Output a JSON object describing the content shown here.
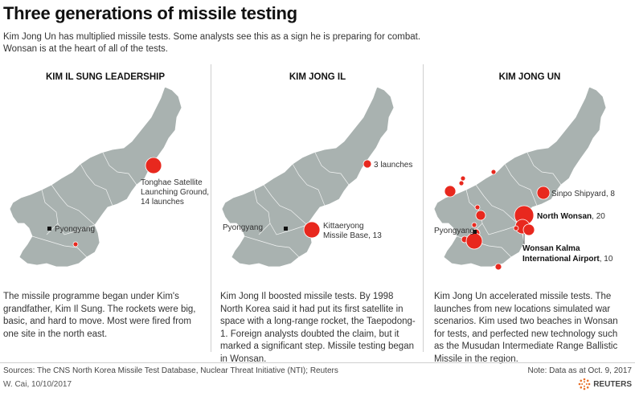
{
  "title": "Three generations of missile testing",
  "subtitle": "Kim Jong Un has multiplied missile tests. Some analysts see this as a sign he is preparing for combat. Wonsan is at the heart of all of the tests.",
  "colors": {
    "land": "#a9b2b0",
    "land_edge": "#ffffff",
    "marker": "#e8281e",
    "text": "#333333"
  },
  "panels": [
    {
      "title": "KIM IL SUNG LEADERSHIP",
      "labels": {
        "tonghae": [
          "Tonghae Satellite",
          "Launching Ground,",
          "14 launches"
        ],
        "pyongyang": "Pyongyang"
      },
      "description": "The missile programme began under Kim's grandfather, Kim Il Sung. The rockets were big, basic, and hard to move. Most were fired from one site in the north east."
    },
    {
      "title": "KIM JONG IL",
      "labels": {
        "launches3": "3 launches",
        "pyongyang": "Pyongyang",
        "kittaeryong": [
          "Kittaeryong",
          "Missile Base, 13"
        ]
      },
      "description": "Kim Jong Il boosted missile tests. By 1998 North Korea said it had put its first satellite in space with a long-range rocket, the Taepodong-1. Foreign analysts doubted the claim, but it marked a significant step. Missile testing began in Wonsan."
    },
    {
      "title": "KIM JONG UN",
      "labels": {
        "sinpo": "Sinpo Shipyard, 8",
        "north_wonsan_name": "North Wonsan",
        "north_wonsan_count": ", 20",
        "pyongyang": "Pyongyang",
        "kalma_line1": "Wonsan Kalma",
        "kalma_line2": "International Airport",
        "kalma_count": ", 10"
      },
      "description": "Kim Jong Un accelerated missile tests. The launches from new locations simulated war scenarios. Kim used two beaches in Wonsan for tests, and perfected new technology such as the Musudan Intermediate Range Ballistic Missile in the region."
    }
  ],
  "footer": {
    "sources": "Sources: The CNS North Korea Missile Test Database, Nuclear Threat Initiative (NTI); Reuters",
    "note": "Note: Data as at Oct. 9, 2017",
    "byline": "W. Cai,  10/10/2017",
    "logo": "REUTERS"
  }
}
